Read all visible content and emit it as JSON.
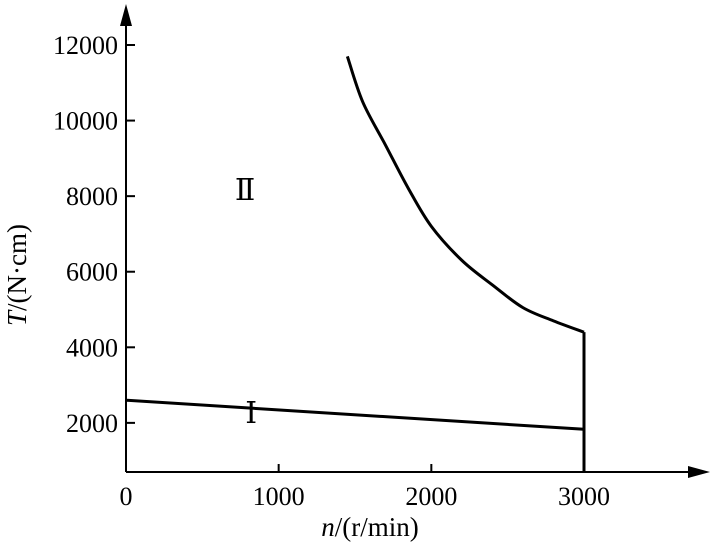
{
  "chart_data": {
    "type": "line",
    "xlabel": "n/(r/min)",
    "xlabel_italic": "n",
    "xlabel_rest": "/(r/min)",
    "ylabel": "T/(N·cm)",
    "ylabel_italic": "T",
    "ylabel_rest": "/(N·cm)",
    "xlim": [
      0,
      3700
    ],
    "ylim": [
      700,
      12500
    ],
    "x_ticks": [
      {
        "value": 0,
        "label": "0"
      },
      {
        "value": 1000,
        "label": "1000"
      },
      {
        "value": 2000,
        "label": "2000"
      },
      {
        "value": 3000,
        "label": "3000"
      }
    ],
    "y_ticks": [
      {
        "value": 2000,
        "label": "2000"
      },
      {
        "value": 4000,
        "label": "4000"
      },
      {
        "value": 6000,
        "label": "6000"
      },
      {
        "value": 8000,
        "label": "8000"
      },
      {
        "value": 10000,
        "label": "10000"
      },
      {
        "value": 12000,
        "label": "12000"
      }
    ],
    "series": [
      {
        "x": [
          0,
          3000
        ],
        "y": [
          2600,
          1830
        ]
      },
      {
        "x": [
          1450,
          1550,
          1700,
          1850,
          2000,
          2200,
          2400,
          2600,
          2800,
          3000
        ],
        "y": [
          11700,
          10500,
          9350,
          8200,
          7200,
          6300,
          5650,
          5050,
          4700,
          4400
        ]
      },
      {
        "x": [
          3000,
          3000
        ],
        "y": [
          4400,
          700
        ]
      }
    ],
    "annotations": [
      {
        "text": "Ⅰ",
        "x": 820,
        "y": 2000
      },
      {
        "text": "Ⅱ",
        "x": 780,
        "y": 7900
      }
    ],
    "grid": false,
    "legend": "none"
  }
}
